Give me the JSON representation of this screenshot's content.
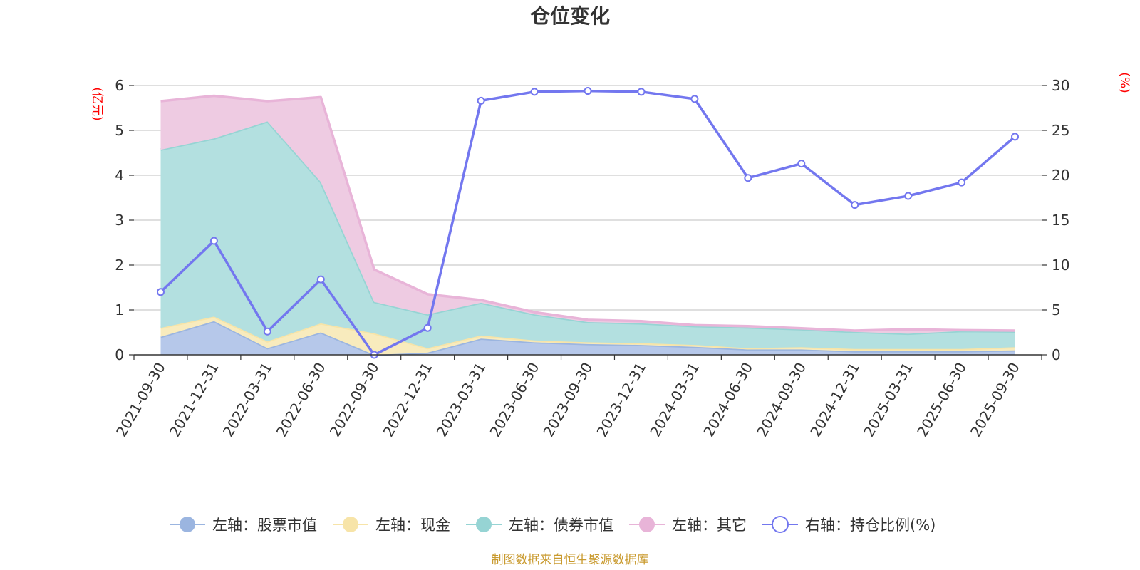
{
  "chart_data": {
    "type": "area",
    "title": "仓位变化",
    "left_axis_unit": "(亿元)",
    "right_axis_unit": "(%)",
    "categories": [
      "2021-09-30",
      "2021-12-31",
      "2022-03-31",
      "2022-06-30",
      "2022-09-30",
      "2022-12-31",
      "2023-03-31",
      "2023-06-30",
      "2023-09-30",
      "2023-12-31",
      "2024-03-31",
      "2024-06-30",
      "2024-09-30",
      "2024-12-31",
      "2025-03-31",
      "2025-06-30",
      "2025-09-30"
    ],
    "y_left": {
      "min": 0,
      "max": 6,
      "ticks": [
        "0",
        "1",
        "2",
        "3",
        "4",
        "5",
        "6"
      ]
    },
    "y_right": {
      "min": 0,
      "max": 30,
      "ticks": [
        "0",
        "5",
        "10",
        "15",
        "20",
        "25",
        "30"
      ]
    },
    "grid": true,
    "legend_position": "bottom",
    "stacked_series": [
      {
        "name": "左轴：股票市值",
        "axis": "left",
        "color": "#9bb5e0",
        "fill": "#b6c8ea",
        "values": [
          0.4,
          0.75,
          0.15,
          0.5,
          0.0,
          0.05,
          0.36,
          0.28,
          0.24,
          0.22,
          0.18,
          0.12,
          0.12,
          0.08,
          0.08,
          0.08,
          0.1
        ]
      },
      {
        "name": "左轴：现金",
        "axis": "left",
        "color": "#f7e4a8",
        "fill": "#f8ebbd",
        "values": [
          0.2,
          0.1,
          0.15,
          0.2,
          0.48,
          0.1,
          0.07,
          0.04,
          0.04,
          0.04,
          0.04,
          0.03,
          0.05,
          0.05,
          0.05,
          0.05,
          0.07
        ]
      },
      {
        "name": "左轴：债券市值",
        "axis": "left",
        "color": "#96d4d4",
        "fill": "#b3e0e0",
        "values": [
          3.97,
          3.97,
          4.9,
          3.15,
          0.7,
          0.75,
          0.73,
          0.58,
          0.45,
          0.44,
          0.42,
          0.46,
          0.4,
          0.38,
          0.34,
          0.4,
          0.35
        ]
      },
      {
        "name": "左轴：其它",
        "axis": "left",
        "color": "#e8b4d8",
        "fill": "#eecbe2",
        "values": [
          1.08,
          0.95,
          0.45,
          1.89,
          0.72,
          0.45,
          0.06,
          0.05,
          0.05,
          0.05,
          0.02,
          0.03,
          0.02,
          0.03,
          0.1,
          0.02,
          0.02
        ]
      }
    ],
    "line_series": {
      "name": "右轴：持仓比例(%)",
      "axis": "right",
      "color": "#7377ef",
      "values": [
        7.0,
        12.7,
        2.6,
        8.4,
        0.0,
        3.0,
        28.3,
        29.3,
        29.4,
        29.3,
        28.5,
        19.7,
        21.3,
        16.7,
        17.7,
        19.2,
        24.3
      ]
    }
  },
  "footer": {
    "source_text": "制图数据来自恒生聚源数据库",
    "source_color": "#c99a2e"
  },
  "colors": {
    "title": "#333333",
    "axis_unit": "#ff0000",
    "grid": "#cccccc",
    "axis_line": "#333333"
  }
}
